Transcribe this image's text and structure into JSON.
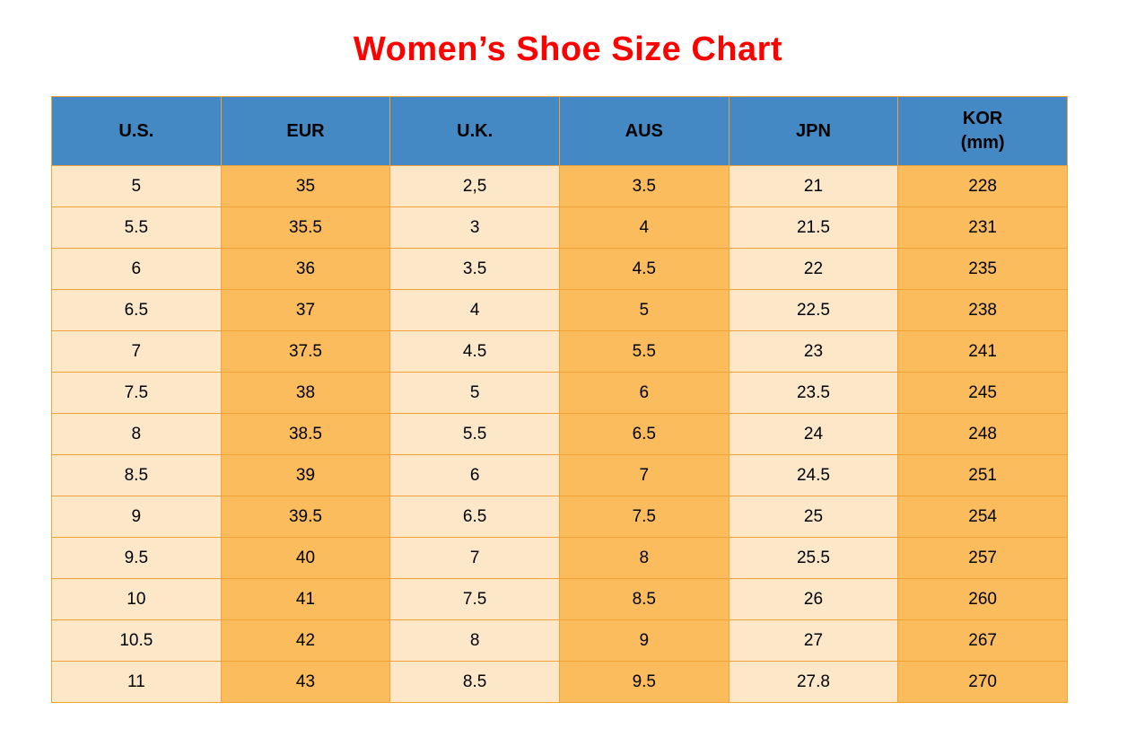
{
  "title": "Women’s Shoe Size Chart",
  "colors": {
    "title_red": "#ff0000",
    "header_blue": "#4489c4",
    "cell_light_cream": "#fce8c9",
    "cell_orange": "#fbbc5d",
    "grid_orange": "#f2a136",
    "text_black": "#000000"
  },
  "chart_data": {
    "type": "table",
    "title": "Women’s Shoe Size Chart",
    "columns": [
      "U.S.",
      "EUR",
      "U.K.",
      "AUS",
      "JPN",
      "KOR"
    ],
    "kor_unit_label": "(mm)",
    "rows": [
      [
        "5",
        "35",
        "2,5",
        "3.5",
        "21",
        "228"
      ],
      [
        "5.5",
        "35.5",
        "3",
        "4",
        "21.5",
        "231"
      ],
      [
        "6",
        "36",
        "3.5",
        "4.5",
        "22",
        "235"
      ],
      [
        "6.5",
        "37",
        "4",
        "5",
        "22.5",
        "238"
      ],
      [
        "7",
        "37.5",
        "4.5",
        "5.5",
        "23",
        "241"
      ],
      [
        "7.5",
        "38",
        "5",
        "6",
        "23.5",
        "245"
      ],
      [
        "8",
        "38.5",
        "5.5",
        "6.5",
        "24",
        "248"
      ],
      [
        "8.5",
        "39",
        "6",
        "7",
        "24.5",
        "251"
      ],
      [
        "9",
        "39.5",
        "6.5",
        "7.5",
        "25",
        "254"
      ],
      [
        "9.5",
        "40",
        "7",
        "8",
        "25.5",
        "257"
      ],
      [
        "10",
        "41",
        "7.5",
        "8.5",
        "26",
        "260"
      ],
      [
        "10.5",
        "42",
        "8",
        "9",
        "27",
        "267"
      ],
      [
        "11",
        "43",
        "8.5",
        "9.5",
        "27.8",
        "270"
      ]
    ]
  }
}
